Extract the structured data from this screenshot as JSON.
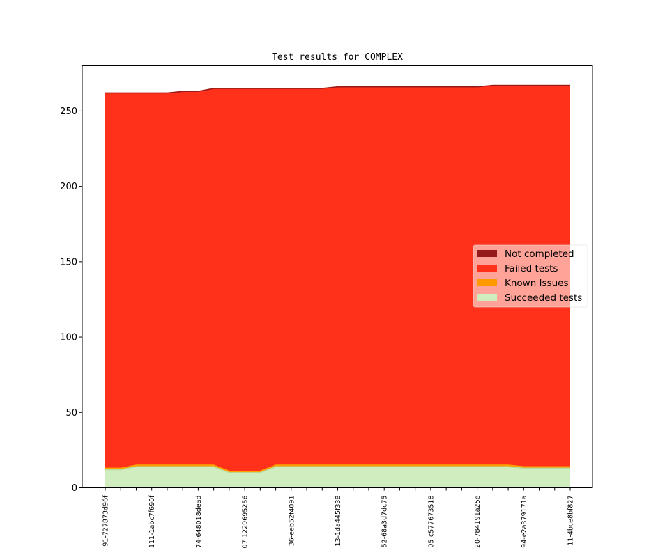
{
  "chart_data": {
    "type": "area",
    "stacked": true,
    "title": "Test results for COMPLEX",
    "xlabel": "",
    "ylabel": "",
    "ylim": [
      0,
      280
    ],
    "yticks": [
      0,
      50,
      100,
      150,
      200,
      250
    ],
    "grid": false,
    "legend_position": "right",
    "xtick_labels": [
      "91-727873d96f",
      "111-1abc7f690f",
      "74-648018dead",
      "07-1229695256",
      "36-eeb52f4091",
      "13-1da445f338",
      "52-68a3d7dc75",
      "05-c577673518",
      "20-784191a25e",
      "94-e2a379171a",
      "11-4bce8bf827"
    ],
    "x": [
      0,
      1,
      2,
      3,
      4,
      5,
      6,
      7,
      8,
      9,
      10,
      11,
      12,
      13,
      14,
      15,
      16,
      17,
      18,
      19,
      20,
      21,
      22,
      23,
      24,
      25,
      26,
      27,
      28,
      29,
      30
    ],
    "series": [
      {
        "name": "Succeeded tests",
        "color": "#d0edbf",
        "edge": "#b6dc9e",
        "values": [
          12,
          12,
          14,
          14,
          14,
          14,
          14,
          14,
          10,
          10,
          10,
          14,
          14,
          14,
          14,
          14,
          14,
          14,
          14,
          14,
          14,
          14,
          14,
          14,
          14,
          14,
          14,
          13,
          13,
          13,
          13
        ]
      },
      {
        "name": "Known Issues",
        "color": "#ff9900",
        "edge": "#ffa500",
        "values": [
          1,
          1,
          1,
          1,
          1,
          1,
          1,
          1,
          1,
          1,
          1,
          1,
          1,
          1,
          1,
          1,
          1,
          1,
          1,
          1,
          1,
          1,
          1,
          1,
          1,
          1,
          1,
          1,
          1,
          1,
          1
        ]
      },
      {
        "name": "Failed tests",
        "color": "#ff311a",
        "edge": "#ff311a",
        "values": [
          249,
          249,
          247,
          247,
          247,
          248,
          248,
          250,
          254,
          254,
          254,
          250,
          250,
          250,
          250,
          251,
          251,
          251,
          251,
          251,
          251,
          251,
          251,
          251,
          251,
          252,
          252,
          253,
          253,
          253,
          253
        ]
      },
      {
        "name": "Not completed",
        "color": "#951a1a",
        "edge": "#951a1a",
        "values": [
          0,
          0,
          0,
          0,
          0,
          0,
          0,
          0,
          0,
          0,
          0,
          0,
          0,
          0,
          0,
          0,
          0,
          0,
          0,
          0,
          0,
          0,
          0,
          0,
          0,
          0,
          0,
          0,
          0,
          0,
          0
        ]
      }
    ],
    "legend_order": [
      "Not completed",
      "Failed tests",
      "Known Issues",
      "Succeeded tests"
    ]
  }
}
